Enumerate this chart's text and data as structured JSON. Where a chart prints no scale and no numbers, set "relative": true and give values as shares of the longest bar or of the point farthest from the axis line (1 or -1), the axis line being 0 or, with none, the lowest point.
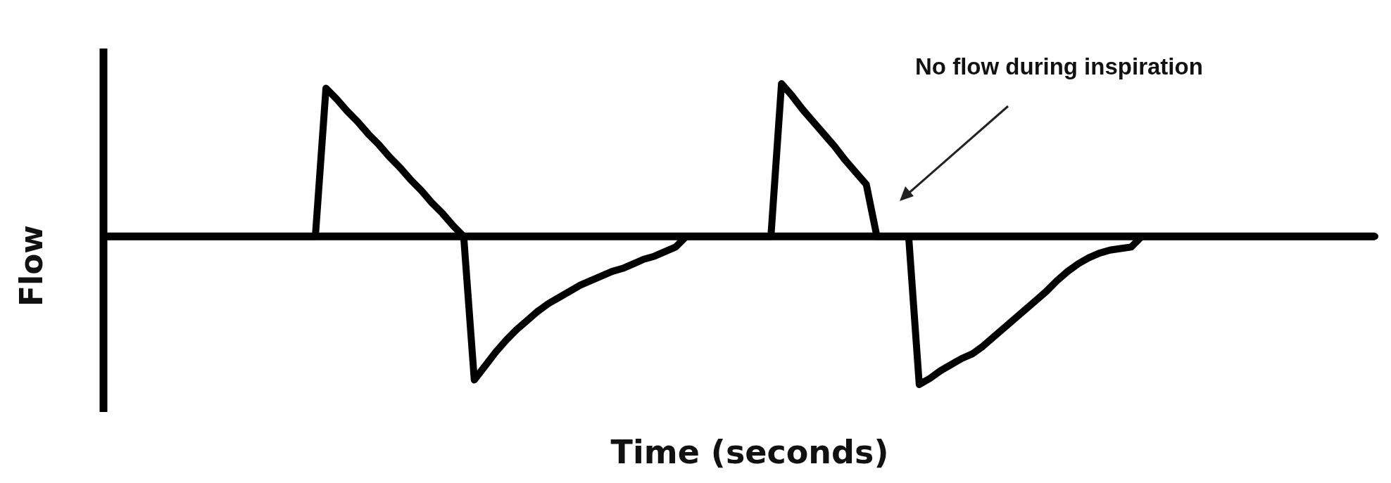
{
  "chart_data": {
    "type": "line",
    "relative": true,
    "xlabel": "Time (seconds)",
    "ylabel": "Flow",
    "annotations": [
      "No flow during inspiration"
    ],
    "categories": [
      null,
      null,
      null,
      null,
      null,
      null,
      null,
      null,
      null,
      null,
      null,
      null,
      null,
      null,
      null,
      null,
      null,
      null,
      null,
      null,
      null,
      null,
      null,
      null,
      null,
      null,
      null,
      null,
      null,
      null,
      null,
      null,
      null,
      null,
      null,
      null,
      null,
      null,
      null,
      null,
      null,
      null,
      null,
      null,
      null,
      null,
      null,
      null,
      null,
      null,
      null,
      null,
      null,
      null,
      null,
      null,
      null,
      null,
      null,
      null,
      null,
      null,
      null,
      null,
      null,
      null,
      null,
      null,
      null,
      null,
      null,
      null,
      null,
      null,
      null,
      null,
      null,
      null,
      null,
      null,
      null,
      null,
      null,
      null,
      null,
      null,
      null,
      null,
      null,
      null,
      null,
      null,
      null,
      null,
      null,
      null,
      null,
      null,
      null,
      null,
      null,
      null,
      null,
      null,
      null,
      null,
      null,
      null,
      null,
      null,
      null,
      null,
      null,
      null,
      null,
      null,
      null,
      null,
      null,
      null,
      null
    ],
    "series": [
      {
        "color": "#000000",
        "values": [
          0,
          0,
          0,
          0,
          0,
          0,
          0,
          0,
          0,
          0,
          0,
          0,
          0,
          0,
          0,
          0,
          0,
          0,
          0,
          0,
          0,
          0.97,
          0.9,
          0.82,
          0.75,
          0.67,
          0.6,
          0.52,
          0.45,
          0.37,
          0.3,
          0.22,
          0.15,
          0.07,
          0,
          -0.94,
          -0.85,
          -0.76,
          -0.68,
          -0.61,
          -0.55,
          -0.49,
          -0.44,
          -0.4,
          -0.36,
          -0.32,
          -0.29,
          -0.26,
          -0.23,
          -0.21,
          -0.18,
          -0.15,
          -0.13,
          -0.1,
          -0.07,
          0,
          0,
          0,
          0,
          0,
          0,
          0,
          0,
          0,
          1,
          0.92,
          0.83,
          0.75,
          0.67,
          0.59,
          0.5,
          0.42,
          0.34,
          0,
          0,
          0,
          0,
          -0.97,
          -0.93,
          -0.88,
          -0.84,
          -0.8,
          -0.77,
          -0.72,
          -0.66,
          -0.6,
          -0.54,
          -0.48,
          -0.42,
          -0.36,
          -0.29,
          -0.23,
          -0.18,
          -0.14,
          -0.11,
          -0.09,
          -0.08,
          -0.07,
          0,
          0,
          0,
          0,
          0,
          0,
          0,
          0,
          0,
          0,
          0,
          0,
          0,
          0,
          0,
          0,
          0,
          0,
          0,
          0,
          0,
          0,
          0
        ]
      }
    ]
  }
}
